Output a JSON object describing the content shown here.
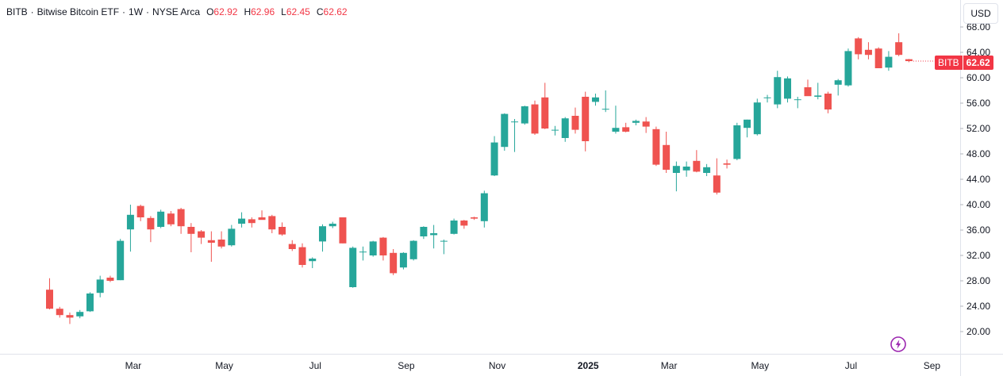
{
  "legend": {
    "symbol": "BITB",
    "name": "Bitwise Bitcoin ETF",
    "interval": "1W",
    "exchange": "NYSE Arca",
    "open_label": "O",
    "open_value": "62.92",
    "high_label": "H",
    "high_value": "62.96",
    "low_label": "L",
    "low_value": "62.45",
    "close_label": "C",
    "close_value": "62.62",
    "separator": "·"
  },
  "currency_button": {
    "label": "USD"
  },
  "last_price_badge": {
    "symbol": "BITB",
    "value": "62.62"
  },
  "bolt_icon": "bolt-icon",
  "colors": {
    "up": "#26a69a",
    "down": "#ef5350",
    "badge": "#f23645",
    "grid": "#f0f3fa",
    "axis_text": "#131722"
  },
  "chart_data": {
    "type": "candlestick",
    "interval": "1W",
    "y_axis": {
      "ticks": [
        "20.00",
        "24.00",
        "28.00",
        "32.00",
        "36.00",
        "40.00",
        "44.00",
        "48.00",
        "52.00",
        "56.00",
        "60.00",
        "64.00",
        "68.00"
      ],
      "range": [
        15.5,
        70.0
      ],
      "side": "right"
    },
    "x_axis": {
      "labels": [
        {
          "text": "Mar",
          "bar": 8,
          "bold": false
        },
        {
          "text": "May",
          "bar": 17,
          "bold": false
        },
        {
          "text": "Jul",
          "bar": 26,
          "bold": false
        },
        {
          "text": "Sep",
          "bar": 35,
          "bold": false
        },
        {
          "text": "Nov",
          "bar": 44,
          "bold": false
        },
        {
          "text": "2025",
          "bar": 53,
          "bold": true
        },
        {
          "text": "Mar",
          "bar": 61,
          "bold": false
        },
        {
          "text": "May",
          "bar": 70,
          "bold": false
        },
        {
          "text": "Jul",
          "bar": 79,
          "bold": false
        },
        {
          "text": "Sep",
          "bar": 87,
          "bold": false
        }
      ]
    },
    "ohlc": [
      [
        26.6,
        28.4,
        23.5,
        23.6
      ],
      [
        23.6,
        23.9,
        22.2,
        22.6
      ],
      [
        22.6,
        23.0,
        21.2,
        22.2
      ],
      [
        22.4,
        23.4,
        22.1,
        23.1
      ],
      [
        23.2,
        26.2,
        23.1,
        26.0
      ],
      [
        26.1,
        28.8,
        25.4,
        28.2
      ],
      [
        28.5,
        28.8,
        27.8,
        28.0
      ],
      [
        28.1,
        34.6,
        28.1,
        34.3
      ],
      [
        36.1,
        40.0,
        32.6,
        38.4
      ],
      [
        39.8,
        40.0,
        37.4,
        38.0
      ],
      [
        37.9,
        38.2,
        34.1,
        36.1
      ],
      [
        36.5,
        39.2,
        36.3,
        38.9
      ],
      [
        38.6,
        39.0,
        36.6,
        36.9
      ],
      [
        39.3,
        39.5,
        35.4,
        36.6
      ],
      [
        36.5,
        37.1,
        32.5,
        35.4
      ],
      [
        35.8,
        36.0,
        33.8,
        34.8
      ],
      [
        34.4,
        35.8,
        31.0,
        34.0
      ],
      [
        34.5,
        35.8,
        33.1,
        33.4
      ],
      [
        33.6,
        36.8,
        33.4,
        36.2
      ],
      [
        37.0,
        38.8,
        36.4,
        37.8
      ],
      [
        37.7,
        38.0,
        36.4,
        37.1
      ],
      [
        38.0,
        39.1,
        37.8,
        37.6
      ],
      [
        38.2,
        38.4,
        35.5,
        36.1
      ],
      [
        36.5,
        37.2,
        35.1,
        35.3
      ],
      [
        33.8,
        34.4,
        32.7,
        33.0
      ],
      [
        33.3,
        33.9,
        30.1,
        30.5
      ],
      [
        31.1,
        31.7,
        30.0,
        31.5
      ],
      [
        34.2,
        36.9,
        32.6,
        36.6
      ],
      [
        36.6,
        37.3,
        36.3,
        37.0
      ],
      [
        38.0,
        38.0,
        33.9,
        33.9
      ],
      [
        27.0,
        33.4,
        26.9,
        33.2
      ],
      [
        32.5,
        33.4,
        31.2,
        32.6
      ],
      [
        32.0,
        34.3,
        31.8,
        34.2
      ],
      [
        34.8,
        34.9,
        31.2,
        32.0
      ],
      [
        32.4,
        33.0,
        28.9,
        29.2
      ],
      [
        30.1,
        32.5,
        29.8,
        32.4
      ],
      [
        31.4,
        34.4,
        31.2,
        34.3
      ],
      [
        35.0,
        36.6,
        34.6,
        36.5
      ],
      [
        35.2,
        36.8,
        33.1,
        35.5
      ],
      [
        34.3,
        34.5,
        32.2,
        34.3
      ],
      [
        35.4,
        37.8,
        35.3,
        37.5
      ],
      [
        37.5,
        37.6,
        36.2,
        36.7
      ],
      [
        38.0,
        38.1,
        37.6,
        37.8
      ],
      [
        37.4,
        42.2,
        36.4,
        41.8
      ],
      [
        44.6,
        50.8,
        44.5,
        49.8
      ],
      [
        49.1,
        54.4,
        48.5,
        54.3
      ],
      [
        53.1,
        53.5,
        48.3,
        53.1
      ],
      [
        52.8,
        55.6,
        52.6,
        55.5
      ],
      [
        55.8,
        56.4,
        51.0,
        51.2
      ],
      [
        56.9,
        59.2,
        51.9,
        52.0
      ],
      [
        51.7,
        52.4,
        50.9,
        51.8
      ],
      [
        50.5,
        53.8,
        49.9,
        53.6
      ],
      [
        54.0,
        55.3,
        51.2,
        51.8
      ],
      [
        57.0,
        57.8,
        48.4,
        50.0
      ],
      [
        56.2,
        57.5,
        55.6,
        56.9
      ],
      [
        55.0,
        58.0,
        54.6,
        55.1
      ],
      [
        51.5,
        55.6,
        51.2,
        52.1
      ],
      [
        52.2,
        52.9,
        51.4,
        51.5
      ],
      [
        52.9,
        53.4,
        52.5,
        53.2
      ],
      [
        53.1,
        53.8,
        51.3,
        52.3
      ],
      [
        51.9,
        52.3,
        46.1,
        46.3
      ],
      [
        49.4,
        51.5,
        45.0,
        45.5
      ],
      [
        45.0,
        46.8,
        42.1,
        46.1
      ],
      [
        45.4,
        46.8,
        44.4,
        46.0
      ],
      [
        46.9,
        48.6,
        45.1,
        45.2
      ],
      [
        45.0,
        46.4,
        44.5,
        45.9
      ],
      [
        44.6,
        47.3,
        41.6,
        41.9
      ],
      [
        46.5,
        47.1,
        45.7,
        46.3
      ],
      [
        47.2,
        52.9,
        47.0,
        52.5
      ],
      [
        52.1,
        53.4,
        50.6,
        53.4
      ],
      [
        51.1,
        56.7,
        50.9,
        56.1
      ],
      [
        56.8,
        57.3,
        56.1,
        56.9
      ],
      [
        55.8,
        61.1,
        55.2,
        60.1
      ],
      [
        56.7,
        60.2,
        56.1,
        59.9
      ],
      [
        56.6,
        57.0,
        55.2,
        56.6
      ],
      [
        58.5,
        59.7,
        57.4,
        57.1
      ],
      [
        57.0,
        59.2,
        56.6,
        57.2
      ],
      [
        57.5,
        57.8,
        54.4,
        55.0
      ],
      [
        58.9,
        59.8,
        57.2,
        59.6
      ],
      [
        58.8,
        64.6,
        58.6,
        64.2
      ],
      [
        66.2,
        66.4,
        62.9,
        63.7
      ],
      [
        64.4,
        65.6,
        62.9,
        63.6
      ],
      [
        64.6,
        64.8,
        61.5,
        61.5
      ],
      [
        61.6,
        64.2,
        61.1,
        63.3
      ],
      [
        65.6,
        67.0,
        63.4,
        63.6
      ],
      [
        62.92,
        62.96,
        62.45,
        62.62
      ]
    ],
    "last_price": 62.62
  }
}
